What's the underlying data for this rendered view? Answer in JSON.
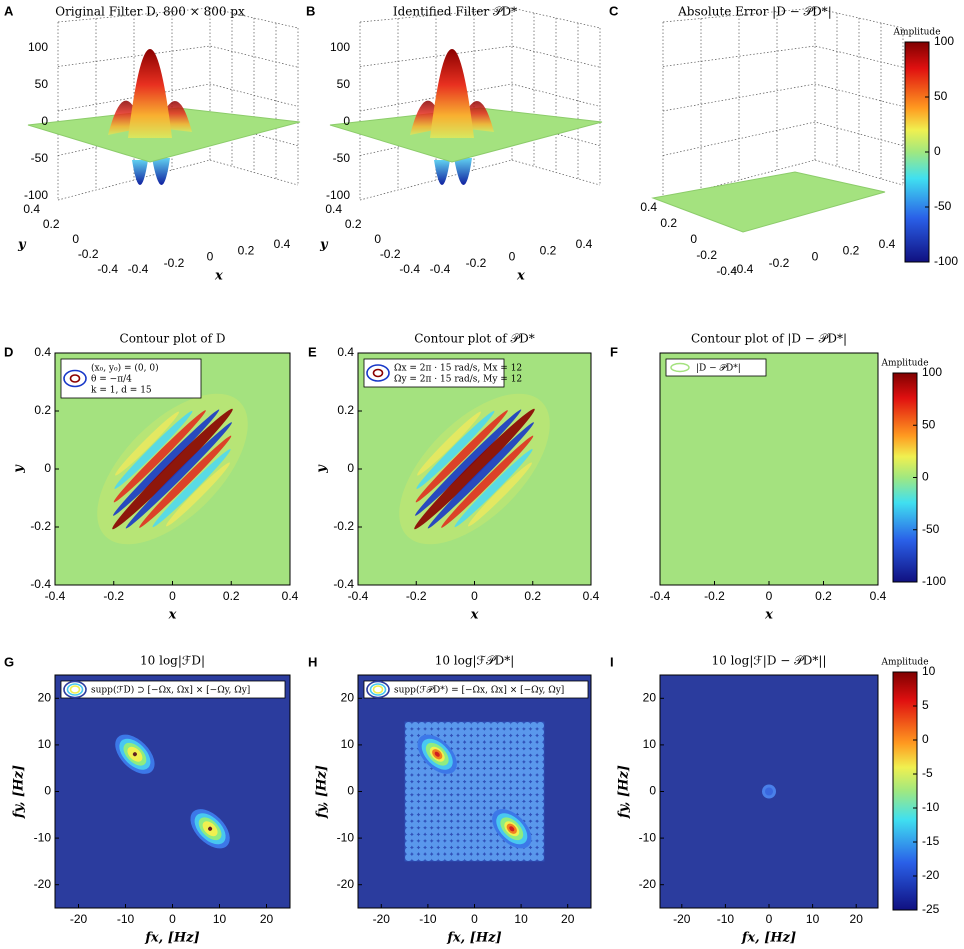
{
  "figure": {
    "panels": [
      {
        "letter": "A",
        "kind": "surface",
        "title": "Original Filter D, 800 × 800 px",
        "zticks": [
          100,
          50,
          0,
          -50,
          -100
        ],
        "yticks": [
          0.4,
          0.2,
          0,
          -0.2,
          -0.4
        ],
        "xticks": [
          -0.4,
          -0.2,
          0,
          0.2,
          0.4
        ],
        "xlabel": "x",
        "ylabel": "y"
      },
      {
        "letter": "B",
        "kind": "surface",
        "title": "Identified Filter 𝒫D*",
        "zticks": [
          100,
          50,
          0,
          -50,
          -100
        ],
        "yticks": [
          0.4,
          0.2,
          0,
          -0.2,
          -0.4
        ],
        "xticks": [
          -0.4,
          -0.2,
          0,
          0.2,
          0.4
        ],
        "xlabel": "x",
        "ylabel": "y"
      },
      {
        "letter": "C",
        "kind": "error-surface",
        "title": "Absolute Error |D − 𝒫D*|",
        "yticks": [
          0.4,
          0.2,
          0,
          -0.2,
          -0.4
        ],
        "xticks": [
          -0.4,
          -0.2,
          0,
          0.2,
          0.4
        ]
      },
      {
        "letter": "D",
        "kind": "contour",
        "title": "Contour plot of D",
        "legend": [
          "(x₀, y₀) = (0, 0)",
          "θ = −π/4",
          "k = 1, d = 15"
        ],
        "xlim": [
          -0.4,
          0.4
        ],
        "ylim": [
          -0.4,
          0.4
        ],
        "xticks": [
          -0.4,
          -0.2,
          0,
          0.2,
          0.4
        ],
        "yticks": [
          0.4,
          0.2,
          0,
          -0.2,
          -0.4
        ],
        "xlabel": "x",
        "ylabel": "y"
      },
      {
        "letter": "E",
        "kind": "contour",
        "title": "Contour plot of 𝒫D*",
        "legend": [
          "Ωx = 2π · 15 rad/s, Mx = 12",
          "Ωy = 2π · 15 rad/s, My = 12"
        ],
        "xlim": [
          -0.4,
          0.4
        ],
        "ylim": [
          -0.4,
          0.4
        ],
        "xticks": [
          -0.4,
          -0.2,
          0,
          0.2,
          0.4
        ],
        "yticks": [
          0.4,
          0.2,
          0,
          -0.2,
          -0.4
        ],
        "xlabel": "x",
        "ylabel": "y"
      },
      {
        "letter": "F",
        "kind": "flat",
        "title": "Contour plot of |D − 𝒫D*|",
        "legend": [
          "|D − 𝒫D*|"
        ],
        "xlim": [
          -0.4,
          0.4
        ],
        "ylim": [
          -0.4,
          0.4
        ],
        "xticks": [
          -0.4,
          -0.2,
          0,
          0.2,
          0.4
        ],
        "xlabel": "x"
      },
      {
        "letter": "G",
        "kind": "spectrum",
        "title": "10 log|ℱD|",
        "legend": [
          "supp(ℱD) ⊃ [−Ωx, Ωx] × [−Ωy, Ωy]"
        ],
        "xlim": [
          -25,
          25
        ],
        "ylim": [
          -25,
          25
        ],
        "xticks": [
          -20,
          -10,
          0,
          10,
          20
        ],
        "yticks": [
          20,
          10,
          0,
          -10,
          -20
        ],
        "xlabel": "fx, [Hz]",
        "ylabel": "fy, [Hz]"
      },
      {
        "letter": "H",
        "kind": "spectrum-grid",
        "title": "10 log|ℱ𝒫D*|",
        "legend": [
          "supp(ℱ𝒫D*) = [−Ωx, Ωx] × [−Ωy, Ωy]"
        ],
        "xlim": [
          -25,
          25
        ],
        "ylim": [
          -25,
          25
        ],
        "xticks": [
          -20,
          -10,
          0,
          10,
          20
        ],
        "yticks": [
          20,
          10,
          0,
          -10,
          -20
        ],
        "xlabel": "fx, [Hz]",
        "ylabel": "fy, [Hz]"
      },
      {
        "letter": "I",
        "kind": "spectrum-dot",
        "title": "10 log|ℱ|D − 𝒫D*||",
        "xlim": [
          -25,
          25
        ],
        "ylim": [
          -25,
          25
        ],
        "xticks": [
          -20,
          -10,
          0,
          10,
          20
        ],
        "yticks": [
          20,
          10,
          0,
          -10,
          -20
        ],
        "xlabel": "fx, [Hz]",
        "ylabel": "fy, [Hz]"
      }
    ],
    "colorbars": [
      {
        "label": "Amplitude",
        "ticks": [
          100,
          50,
          0,
          -50,
          -100
        ]
      },
      {
        "label": "Amplitude",
        "ticks": [
          100,
          50,
          0,
          -50,
          -100
        ]
      },
      {
        "label": "Amplitude",
        "ticks": [
          10,
          5,
          0,
          -5,
          -10,
          -15,
          -20,
          -25
        ]
      }
    ]
  }
}
